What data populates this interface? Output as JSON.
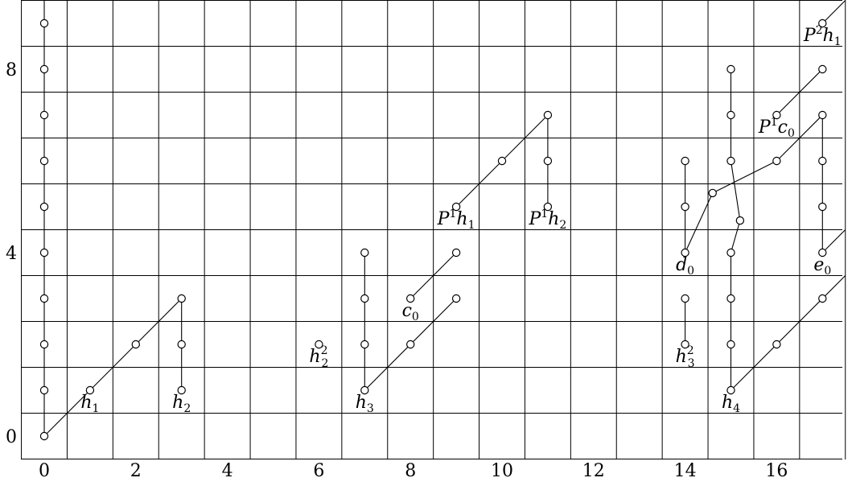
{
  "chart_data": {
    "type": "scatter",
    "title": "",
    "xlabel": "",
    "ylabel": "",
    "x_ticks": [
      "0",
      "2",
      "4",
      "6",
      "8",
      "10",
      "12",
      "14",
      "16"
    ],
    "y_ticks": [
      "0",
      "4",
      "8"
    ],
    "xlim": [
      -0.5,
      17.5
    ],
    "ylim": [
      -0.5,
      9.5
    ],
    "grid": true,
    "points": [
      [
        0,
        0
      ],
      [
        0,
        1
      ],
      [
        0,
        2
      ],
      [
        0,
        3
      ],
      [
        0,
        4
      ],
      [
        0,
        5
      ],
      [
        0,
        6
      ],
      [
        0,
        7
      ],
      [
        0,
        8
      ],
      [
        0,
        9
      ],
      [
        1,
        1
      ],
      [
        2,
        2
      ],
      [
        3,
        3
      ],
      [
        3,
        2
      ],
      [
        3,
        1
      ],
      [
        6,
        2
      ],
      [
        7,
        1
      ],
      [
        7,
        2
      ],
      [
        7,
        3
      ],
      [
        7,
        4
      ],
      [
        8,
        2
      ],
      [
        9,
        3
      ],
      [
        8,
        3
      ],
      [
        9,
        4
      ],
      [
        9,
        5
      ],
      [
        10,
        6
      ],
      [
        11,
        7
      ],
      [
        11,
        6
      ],
      [
        11,
        5
      ],
      [
        14,
        4
      ],
      [
        14,
        5
      ],
      [
        14,
        6
      ],
      [
        14,
        2
      ],
      [
        14,
        3
      ],
      [
        14.6,
        5.3
      ],
      [
        15.2,
        4.7
      ],
      [
        15,
        1
      ],
      [
        15,
        2
      ],
      [
        15,
        3
      ],
      [
        15,
        4
      ],
      [
        15,
        6
      ],
      [
        15,
        7
      ],
      [
        15,
        8
      ],
      [
        16,
        2
      ],
      [
        17,
        3
      ],
      [
        16,
        6
      ],
      [
        17,
        7
      ],
      [
        16,
        7
      ],
      [
        17,
        8
      ],
      [
        17,
        9
      ],
      [
        17,
        4
      ],
      [
        17,
        5
      ],
      [
        17,
        6
      ]
    ],
    "lines": [
      {
        "from": [
          0,
          0
        ],
        "to": [
          0,
          9.5
        ]
      },
      {
        "from": [
          0,
          0
        ],
        "to": [
          3,
          3
        ]
      },
      {
        "from": [
          3,
          3
        ],
        "to": [
          3,
          1
        ]
      },
      {
        "from": [
          7,
          1
        ],
        "to": [
          7,
          4
        ]
      },
      {
        "from": [
          7,
          1
        ],
        "to": [
          9,
          3
        ]
      },
      {
        "from": [
          8,
          3
        ],
        "to": [
          9,
          4
        ]
      },
      {
        "from": [
          9,
          5
        ],
        "to": [
          11,
          7
        ]
      },
      {
        "from": [
          11,
          7
        ],
        "to": [
          11,
          5
        ]
      },
      {
        "from": [
          14,
          2
        ],
        "to": [
          14,
          3
        ]
      },
      {
        "from": [
          14,
          4
        ],
        "to": [
          14,
          6
        ]
      },
      {
        "from": [
          14,
          4
        ],
        "to": [
          14.6,
          5.3
        ]
      },
      {
        "from": [
          14.6,
          5.3
        ],
        "to": [
          16,
          6
        ]
      },
      {
        "from": [
          16,
          6
        ],
        "to": [
          17,
          7
        ]
      },
      {
        "from": [
          15,
          1
        ],
        "to": [
          15,
          4
        ]
      },
      {
        "from": [
          15,
          4
        ],
        "to": [
          15.2,
          4.7
        ]
      },
      {
        "from": [
          15.2,
          4.7
        ],
        "to": [
          15,
          6
        ]
      },
      {
        "from": [
          15,
          6
        ],
        "to": [
          15,
          8
        ]
      },
      {
        "from": [
          15,
          1
        ],
        "to": [
          17.5,
          3.5
        ]
      },
      {
        "from": [
          16,
          7
        ],
        "to": [
          17,
          8
        ]
      },
      {
        "from": [
          17,
          4
        ],
        "to": [
          17,
          7
        ]
      },
      {
        "from": [
          17,
          4
        ],
        "to": [
          17.5,
          4.5
        ]
      },
      {
        "from": [
          17,
          9
        ],
        "to": [
          17.5,
          9.5
        ]
      }
    ],
    "labels": [
      {
        "base": "h",
        "sub": "1",
        "sup": "",
        "pre": "",
        "x": 1,
        "y": 1
      },
      {
        "base": "h",
        "sub": "2",
        "sup": "",
        "pre": "",
        "x": 3,
        "y": 1
      },
      {
        "base": "h",
        "sub": "2",
        "sup": "2",
        "pre": "",
        "x": 6,
        "y": 2
      },
      {
        "base": "h",
        "sub": "3",
        "sup": "",
        "pre": "",
        "x": 7,
        "y": 1
      },
      {
        "base": "c",
        "sub": "0",
        "sup": "",
        "pre": "",
        "x": 8,
        "y": 3
      },
      {
        "base": "h",
        "sub": "1",
        "sup": "1",
        "pre": "P",
        "x": 9,
        "y": 5
      },
      {
        "base": "h",
        "sub": "2",
        "sup": "1",
        "pre": "P",
        "x": 11,
        "y": 5
      },
      {
        "base": "d",
        "sub": "0",
        "sup": "",
        "pre": "",
        "x": 14,
        "y": 4
      },
      {
        "base": "h",
        "sub": "3",
        "sup": "2",
        "pre": "",
        "x": 14,
        "y": 2
      },
      {
        "base": "h",
        "sub": "4",
        "sup": "",
        "pre": "",
        "x": 15,
        "y": 1
      },
      {
        "base": "c",
        "sub": "0",
        "sup": "1",
        "pre": "P",
        "x": 16,
        "y": 7
      },
      {
        "base": "e",
        "sub": "0",
        "sup": "",
        "pre": "",
        "x": 17,
        "y": 4
      },
      {
        "base": "h",
        "sub": "1",
        "sup": "2",
        "pre": "P",
        "x": 17,
        "y": 9
      }
    ]
  }
}
